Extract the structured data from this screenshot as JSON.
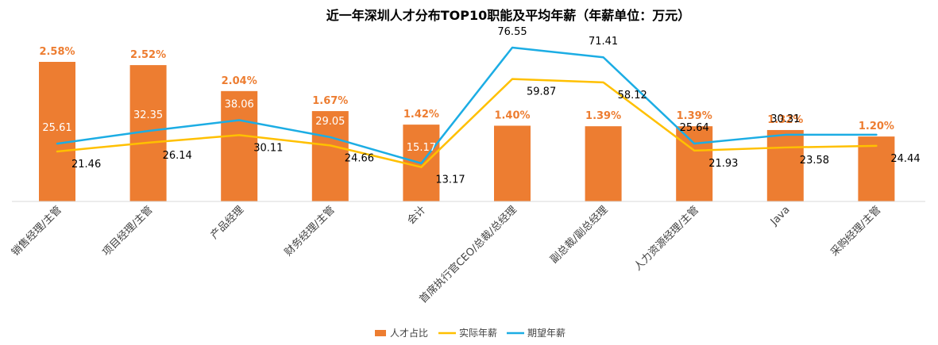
{
  "chart_data": {
    "type": "bar",
    "title": "近一年深圳人才分布TOP10职能及平均年薪（年薪单位：万元）",
    "categories": [
      "销售经理/主管",
      "项目经理/主管",
      "产品经理",
      "财务经理/主管",
      "会计",
      "首席执行官CEO/总裁/总经理",
      "副总裁/副总经理",
      "人力资源经理/主管",
      "Java",
      "采购经理/主管"
    ],
    "series": [
      {
        "name": "人才占比",
        "kind": "bar",
        "color": "#ED7D31",
        "values": [
          2.58,
          2.52,
          2.04,
          1.67,
          1.42,
          1.4,
          1.39,
          1.39,
          1.32,
          1.2
        ],
        "labels": [
          "2.58%",
          "2.52%",
          "2.04%",
          "1.67%",
          "1.42%",
          "1.40%",
          "1.39%",
          "1.39%",
          "1.32%",
          "1.20%"
        ]
      },
      {
        "name": "实际年薪",
        "kind": "line",
        "color": "#FFC000",
        "values": [
          21.46,
          26.14,
          30.11,
          24.66,
          13.17,
          59.87,
          58.12,
          21.93,
          23.58,
          24.44
        ],
        "labels": [
          "21.46",
          "26.14",
          "30.11",
          "24.66",
          "13.17",
          "59.87",
          "58.12",
          "21.93",
          "23.58",
          "24.44"
        ]
      },
      {
        "name": "期望年薪",
        "kind": "line",
        "color": "#1CADE4",
        "values": [
          25.61,
          32.35,
          38.06,
          29.05,
          15.17,
          76.55,
          71.41,
          25.64,
          30.31,
          30.31
        ],
        "labels": [
          "25.61",
          "32.35",
          "38.06",
          "29.05",
          "15.17",
          "76.55",
          "71.41",
          "25.64",
          "30.31",
          ""
        ]
      }
    ],
    "legend": "bottom",
    "grid": false
  }
}
